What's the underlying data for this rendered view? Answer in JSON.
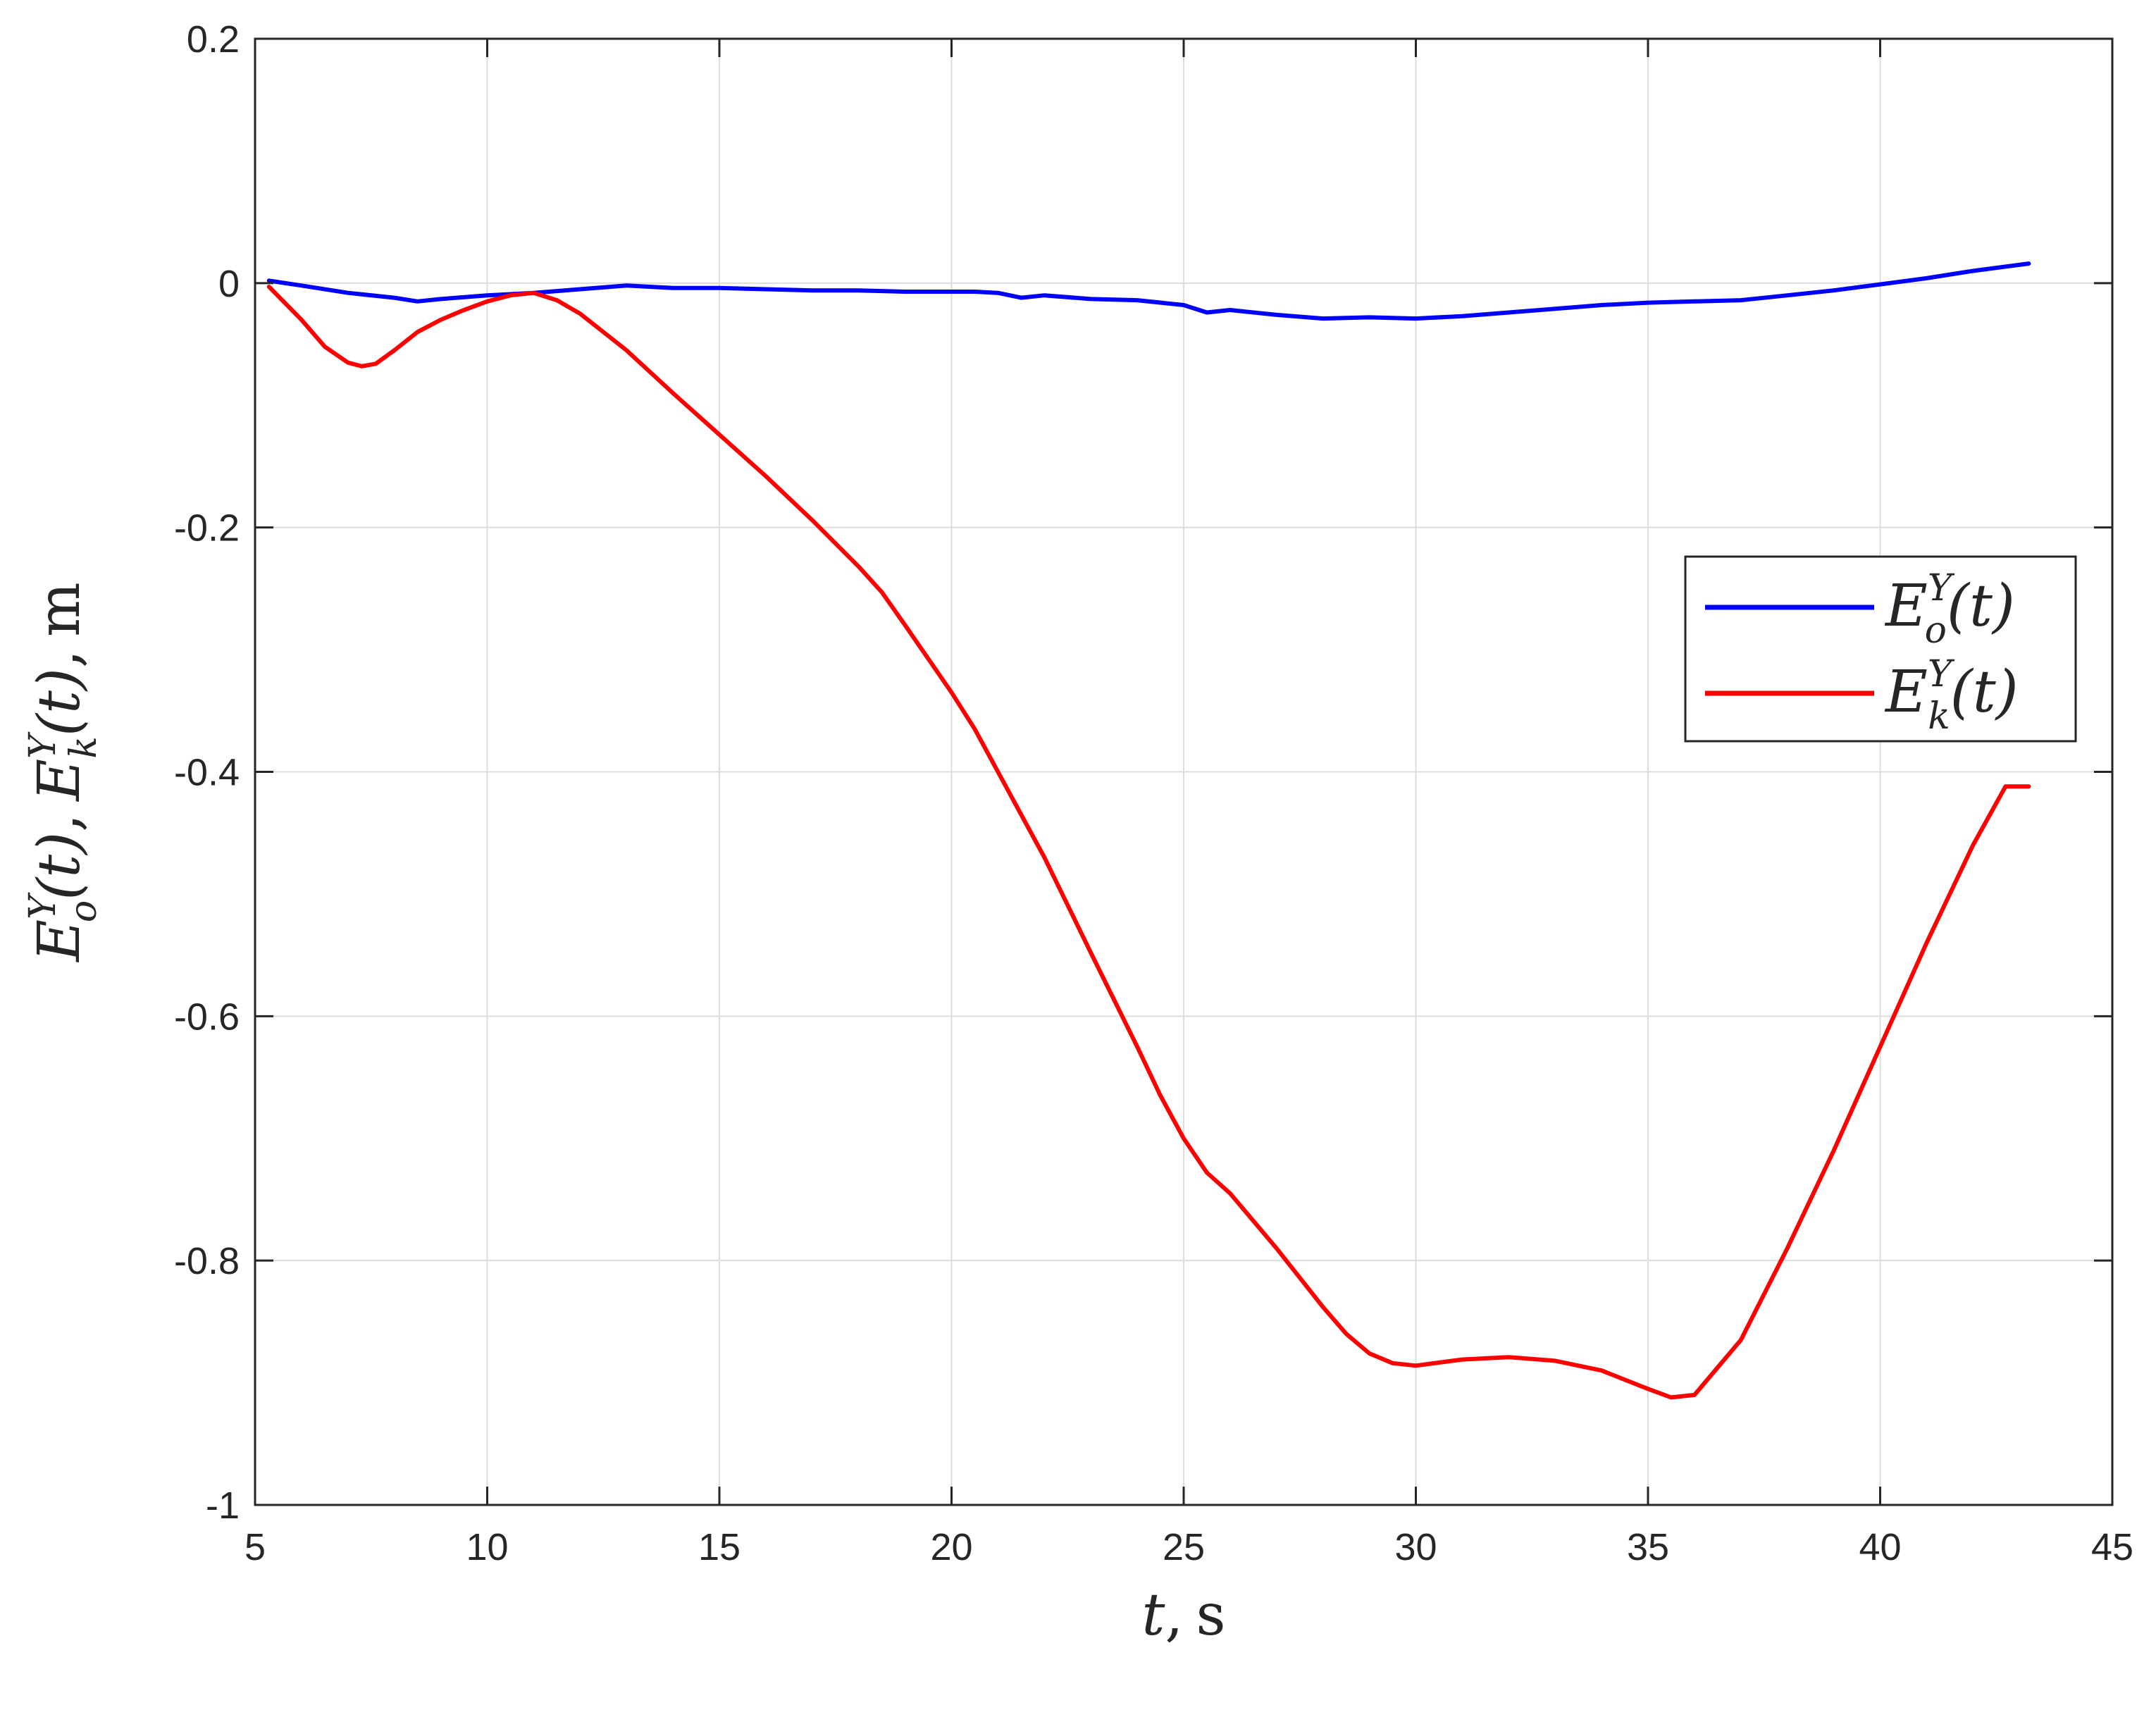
{
  "chart_data": {
    "type": "line",
    "xlabel": {
      "var": "t",
      "sep": ",",
      "unit": "s"
    },
    "ylabel": {
      "sym1": "E",
      "sup1": "Y",
      "sub1": "o",
      "arg1": "(t)",
      "sep1": ",",
      "sym2": "E",
      "sup2": "Y",
      "sub2": "k",
      "arg2": "(t)",
      "sep2": ",",
      "unit": "m"
    },
    "xlim": [
      5,
      45
    ],
    "ylim": [
      -1,
      0.2
    ],
    "xticks": [
      5,
      10,
      15,
      20,
      25,
      30,
      35,
      40,
      45
    ],
    "yticks": [
      0.2,
      0,
      -0.2,
      -0.4,
      -0.6,
      -0.8,
      -1
    ],
    "xtick_labels": [
      "5",
      "10",
      "15",
      "20",
      "25",
      "30",
      "35",
      "40",
      "45"
    ],
    "ytick_labels": [
      "0.2",
      "0",
      "-0.2",
      "-0.4",
      "-0.6",
      "-0.8",
      "-1"
    ],
    "grid": true,
    "legend_position": "middle-right",
    "series": [
      {
        "name": {
          "sym": "E",
          "sup": "Y",
          "sub": "o",
          "arg": "(t)"
        },
        "color": "#0000ff",
        "x": [
          5.3,
          6,
          7,
          8,
          8.5,
          9,
          10,
          11,
          12,
          13,
          14,
          15,
          16,
          17,
          18,
          19,
          20,
          20.5,
          21,
          21.5,
          22,
          23,
          24,
          25,
          25.5,
          26,
          27,
          28,
          29,
          30,
          31,
          32,
          33,
          34,
          35,
          36,
          37,
          38,
          39,
          40,
          41,
          42,
          43.2
        ],
        "y": [
          0.002,
          -0.002,
          -0.008,
          -0.012,
          -0.015,
          -0.013,
          -0.01,
          -0.008,
          -0.005,
          -0.002,
          -0.004,
          -0.004,
          -0.005,
          -0.006,
          -0.006,
          -0.007,
          -0.007,
          -0.007,
          -0.008,
          -0.012,
          -0.01,
          -0.013,
          -0.014,
          -0.018,
          -0.024,
          -0.022,
          -0.026,
          -0.029,
          -0.028,
          -0.029,
          -0.027,
          -0.024,
          -0.021,
          -0.018,
          -0.016,
          -0.015,
          -0.014,
          -0.01,
          -0.006,
          -0.001,
          0.004,
          0.01,
          0.016
        ]
      },
      {
        "name": {
          "sym": "E",
          "sup": "Y",
          "sub": "k",
          "arg": "(t)"
        },
        "color": "#ff0000",
        "x": [
          5.3,
          6,
          6.5,
          7,
          7.3,
          7.6,
          8,
          8.5,
          9,
          9.5,
          10,
          10.5,
          11,
          11.5,
          12,
          13,
          14,
          15,
          16,
          17,
          18,
          18.5,
          19,
          20,
          20.5,
          21,
          22,
          23,
          24,
          24.5,
          25,
          25.5,
          26,
          27,
          28,
          28.5,
          29,
          29.5,
          30,
          31,
          32,
          33,
          34,
          35,
          35.5,
          36,
          37,
          38,
          39,
          40,
          41,
          42,
          42.7,
          43.2
        ],
        "y": [
          -0.003,
          -0.03,
          -0.052,
          -0.065,
          -0.068,
          -0.066,
          -0.055,
          -0.04,
          -0.03,
          -0.022,
          -0.015,
          -0.01,
          -0.008,
          -0.014,
          -0.025,
          -0.055,
          -0.09,
          -0.124,
          -0.158,
          -0.194,
          -0.232,
          -0.253,
          -0.28,
          -0.335,
          -0.365,
          -0.4,
          -0.47,
          -0.548,
          -0.625,
          -0.665,
          -0.7,
          -0.728,
          -0.745,
          -0.79,
          -0.838,
          -0.86,
          -0.876,
          -0.884,
          -0.886,
          -0.881,
          -0.879,
          -0.882,
          -0.89,
          -0.905,
          -0.912,
          -0.91,
          -0.865,
          -0.79,
          -0.71,
          -0.625,
          -0.54,
          -0.46,
          -0.412,
          -0.412
        ]
      }
    ]
  }
}
